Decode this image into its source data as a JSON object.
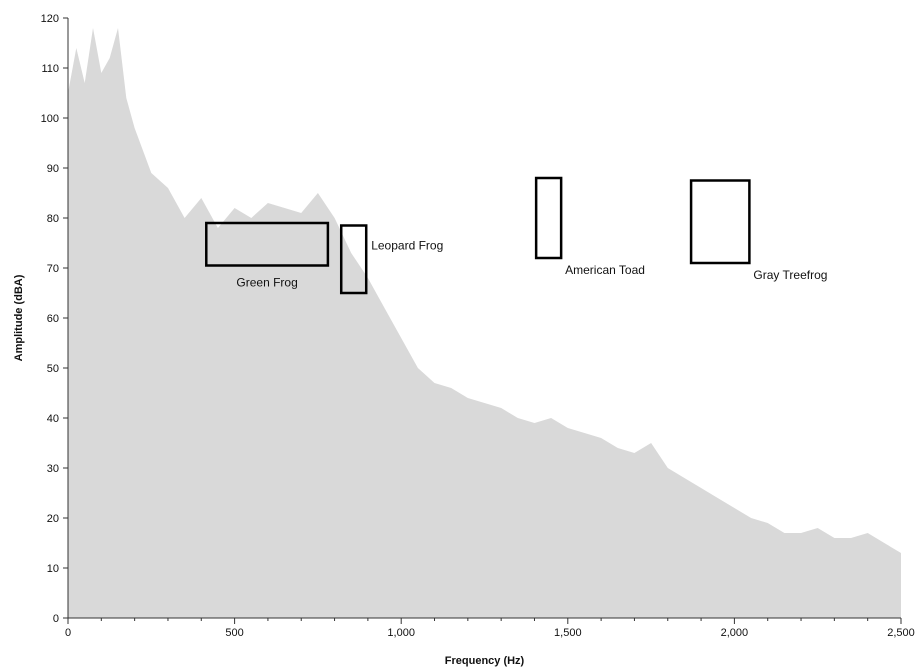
{
  "chart_data": {
    "type": "area",
    "title": "",
    "xlabel": "Frequency (Hz)",
    "ylabel": "Amplitude (dBA)",
    "xlim": [
      0,
      2500
    ],
    "ylim": [
      0,
      120
    ],
    "x_ticks": [
      0,
      500,
      1000,
      1500,
      2000,
      2500
    ],
    "x_tick_labels": [
      "0",
      "500",
      "1,000",
      "1,500",
      "2,000",
      "2,500"
    ],
    "y_ticks": [
      0,
      10,
      20,
      30,
      40,
      50,
      60,
      70,
      80,
      90,
      100,
      110,
      120
    ],
    "y_tick_labels": [
      "0",
      "10",
      "20",
      "30",
      "40",
      "50",
      "60",
      "70",
      "80",
      "90",
      "100",
      "110",
      "120"
    ],
    "grid": false,
    "series": [
      {
        "color": "#d9d9d9",
        "x": [
          0,
          25,
          50,
          75,
          100,
          125,
          150,
          175,
          200,
          250,
          300,
          350,
          400,
          450,
          500,
          550,
          600,
          650,
          700,
          750,
          800,
          850,
          900,
          950,
          1000,
          1050,
          1100,
          1150,
          1200,
          1250,
          1300,
          1350,
          1400,
          1450,
          1500,
          1550,
          1600,
          1650,
          1700,
          1750,
          1800,
          1850,
          1900,
          1950,
          2000,
          2050,
          2100,
          2150,
          2200,
          2250,
          2300,
          2350,
          2400,
          2450,
          2500
        ],
        "y": [
          105,
          114,
          107,
          118,
          109,
          112,
          118,
          104,
          98,
          89,
          86,
          80,
          84,
          78,
          82,
          80,
          83,
          82,
          81,
          85,
          80,
          73,
          68,
          62,
          56,
          50,
          47,
          46,
          44,
          43,
          42,
          40,
          39,
          40,
          38,
          37,
          36,
          34,
          33,
          35,
          30,
          28,
          26,
          24,
          22,
          20,
          19,
          17,
          17,
          18,
          16,
          16,
          17,
          15,
          13
        ]
      }
    ],
    "annotations": [
      {
        "label": "Green Frog",
        "x_range": [
          415,
          780
        ],
        "y_range": [
          70.5,
          79
        ],
        "label_pos": "below"
      },
      {
        "label": "Leopard Frog",
        "x_range": [
          820,
          895
        ],
        "y_range": [
          65,
          78.5
        ],
        "label_pos": "right"
      },
      {
        "label": "American Toad",
        "x_range": [
          1405,
          1480
        ],
        "y_range": [
          72,
          88
        ],
        "label_pos": "below-right"
      },
      {
        "label": "Gray Treefrog",
        "x_range": [
          1870,
          2045
        ],
        "y_range": [
          71,
          87.5
        ],
        "label_pos": "below-right"
      }
    ],
    "colors": {
      "fill": "#d9d9d9",
      "axis": "#333333",
      "box": "#000000"
    }
  }
}
